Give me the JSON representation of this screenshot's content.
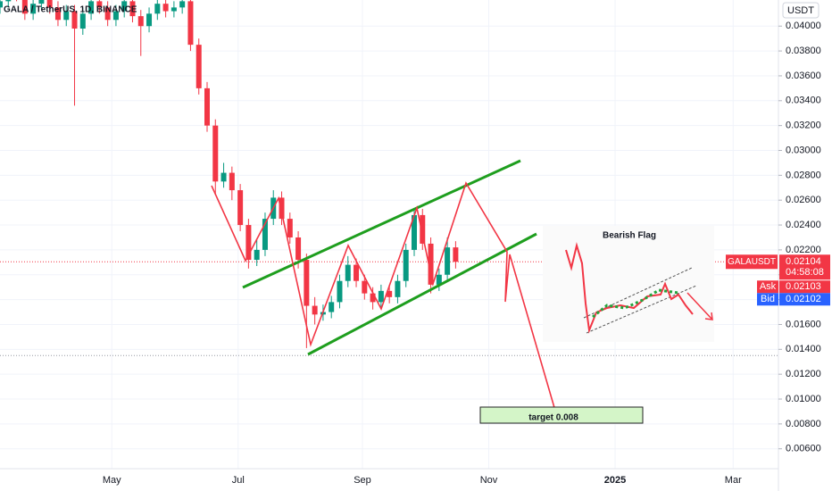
{
  "chart_data": {
    "type": "candlestick",
    "title": "GALA / TetherUS, 1D, BINANCE",
    "currency": "USDT",
    "x": [
      0,
      4,
      8,
      12,
      16,
      20,
      24,
      28,
      32,
      36,
      40,
      44,
      48,
      52,
      56,
      60,
      64,
      68,
      72,
      76,
      80,
      84,
      88,
      92,
      96,
      100,
      104,
      108,
      112,
      116,
      120,
      124,
      128,
      132,
      136,
      140,
      144,
      148,
      152,
      156,
      160,
      164,
      168,
      172,
      176,
      180,
      184,
      188,
      192,
      196,
      200,
      204,
      208,
      212,
      216,
      220
    ],
    "open": [
      0.0415,
      0.042,
      0.0432,
      0.0425,
      0.041,
      0.0418,
      0.043,
      0.0415,
      0.0405,
      0.0412,
      0.0398,
      0.041,
      0.042,
      0.0415,
      0.0405,
      0.0412,
      0.042,
      0.0408,
      0.04,
      0.041,
      0.0418,
      0.0412,
      0.0415,
      0.042,
      0.0385,
      0.035,
      0.032,
      0.0275,
      0.0282,
      0.0268,
      0.024,
      0.0212,
      0.022,
      0.0245,
      0.0262,
      0.0245,
      0.023,
      0.0212,
      0.0175,
      0.0168,
      0.017,
      0.0178,
      0.0195,
      0.0208,
      0.0195,
      0.0185,
      0.0178,
      0.0187,
      0.0182,
      0.0195,
      0.022,
      0.0248,
      0.0225,
      0.0192,
      0.02,
      0.0222
    ],
    "high": [
      0.0425,
      0.0437,
      0.0437,
      0.043,
      0.0423,
      0.0435,
      0.0435,
      0.042,
      0.0417,
      0.0417,
      0.0415,
      0.0425,
      0.0425,
      0.042,
      0.0417,
      0.0425,
      0.0425,
      0.0413,
      0.0415,
      0.0423,
      0.0423,
      0.042,
      0.0425,
      0.0425,
      0.039,
      0.0355,
      0.0325,
      0.029,
      0.0287,
      0.0273,
      0.0245,
      0.0228,
      0.025,
      0.0268,
      0.0267,
      0.025,
      0.0235,
      0.0217,
      0.0182,
      0.0176,
      0.0183,
      0.02,
      0.0215,
      0.0213,
      0.02,
      0.019,
      0.0192,
      0.0192,
      0.02,
      0.0225,
      0.0253,
      0.0253,
      0.023,
      0.0205,
      0.023,
      0.0227
    ],
    "low": [
      0.041,
      0.0415,
      0.042,
      0.0405,
      0.0405,
      0.0413,
      0.041,
      0.04,
      0.04,
      0.0336,
      0.0393,
      0.0405,
      0.041,
      0.04,
      0.04,
      0.0407,
      0.0403,
      0.0376,
      0.0395,
      0.0405,
      0.0407,
      0.0407,
      0.041,
      0.038,
      0.0345,
      0.0315,
      0.0265,
      0.027,
      0.026,
      0.0235,
      0.0205,
      0.0207,
      0.0215,
      0.024,
      0.024,
      0.0225,
      0.0205,
      0.0141,
      0.016,
      0.0163,
      0.0165,
      0.0173,
      0.019,
      0.019,
      0.018,
      0.0172,
      0.0173,
      0.0177,
      0.0177,
      0.019,
      0.0215,
      0.022,
      0.0185,
      0.0187,
      0.0195,
      0.0205
    ],
    "close": [
      0.042,
      0.0432,
      0.0425,
      0.041,
      0.0418,
      0.043,
      0.0415,
      0.0405,
      0.0412,
      0.0398,
      0.041,
      0.042,
      0.0415,
      0.0405,
      0.0412,
      0.042,
      0.0408,
      0.04,
      0.041,
      0.0418,
      0.0412,
      0.0415,
      0.042,
      0.0385,
      0.035,
      0.032,
      0.0275,
      0.0282,
      0.0268,
      0.024,
      0.0212,
      0.022,
      0.0245,
      0.0262,
      0.0245,
      0.023,
      0.0212,
      0.0175,
      0.0168,
      0.017,
      0.0178,
      0.0195,
      0.0208,
      0.0195,
      0.0185,
      0.0178,
      0.0187,
      0.0182,
      0.0195,
      0.022,
      0.0248,
      0.0225,
      0.0192,
      0.02,
      0.0222,
      0.02104
    ],
    "up_color": "#089981",
    "down_color": "#f23645",
    "xlim": [
      0,
      375
    ],
    "xticks": [
      {
        "value": 54,
        "label": "May"
      },
      {
        "value": 115,
        "label": "Jul"
      },
      {
        "value": 175,
        "label": "Sep"
      },
      {
        "value": 236,
        "label": "Nov"
      },
      {
        "value": 297,
        "label": "2025"
      },
      {
        "value": 354,
        "label": "Mar"
      }
    ],
    "ylim": [
      0.0044,
      0.0421
    ],
    "yticks": [
      {
        "value": 0.04,
        "label": "0.04000"
      },
      {
        "value": 0.038,
        "label": "0.03800"
      },
      {
        "value": 0.036,
        "label": "0.03600"
      },
      {
        "value": 0.034,
        "label": "0.03400"
      },
      {
        "value": 0.032,
        "label": "0.03200"
      },
      {
        "value": 0.03,
        "label": "0.03000"
      },
      {
        "value": 0.028,
        "label": "0.02800"
      },
      {
        "value": 0.026,
        "label": "0.02600"
      },
      {
        "value": 0.024,
        "label": "0.02400"
      },
      {
        "value": 0.022,
        "label": "0.02200"
      },
      {
        "value": 0.02,
        "label": "0.02000"
      },
      {
        "value": 0.018,
        "label": "0.01800"
      },
      {
        "value": 0.016,
        "label": "0.01600"
      },
      {
        "value": 0.014,
        "label": "0.01400"
      },
      {
        "value": 0.012,
        "label": "0.01200"
      },
      {
        "value": 0.01,
        "label": "0.01000"
      },
      {
        "value": 0.008,
        "label": "0.00800"
      },
      {
        "value": 0.006,
        "label": "0.00600"
      }
    ],
    "symbol": "GALAUSDT",
    "last_price": 0.02104,
    "countdown": "04:58:08",
    "ask_label": "Ask",
    "ask": 0.02103,
    "bid_label": "Bid",
    "bid": 0.02102,
    "support_line": 0.0135,
    "inset_title": "Bearish Flag",
    "target_label": "target 0.008"
  }
}
